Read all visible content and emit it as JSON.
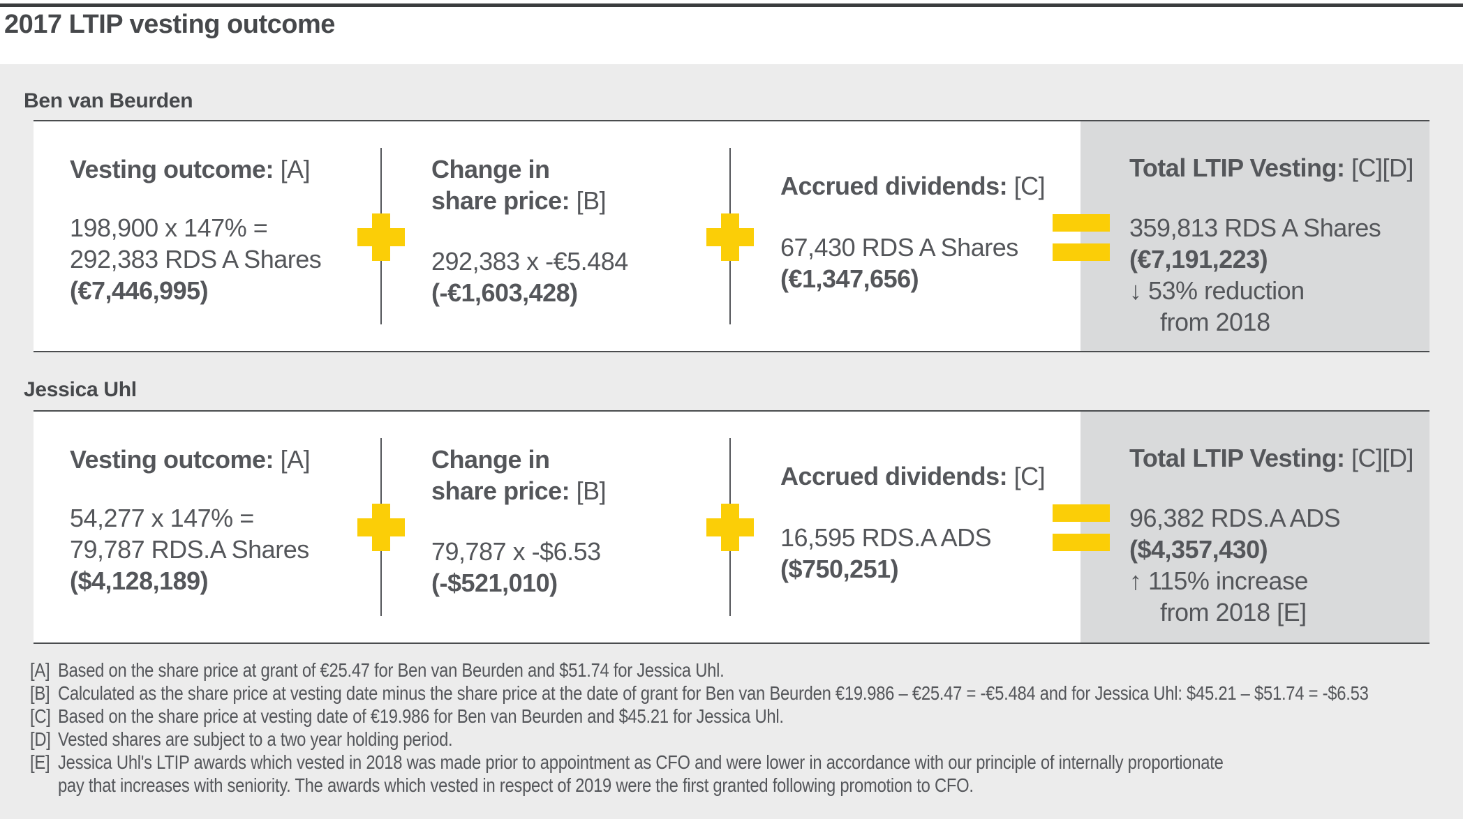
{
  "title": "2017 LTIP vesting outcome",
  "colors": {
    "accent_yellow": "#FBCE07",
    "text_gray": "#54565A",
    "total_panel_gray": "#D9DADB",
    "section_background": "#ECECEC"
  },
  "icons": {
    "plus": "plus-sign",
    "equals": "equals-sign",
    "down_arrow": "↓",
    "up_arrow": "↑"
  },
  "people": [
    {
      "name": "Ben van Beurden",
      "vesting_outcome": {
        "label": "Vesting outcome:",
        "ref": "[A]",
        "calc": "198,900 x 147% =",
        "result": "292,383 RDS A Shares",
        "value": "(€7,446,995)"
      },
      "change_in_share_price": {
        "label_line1": "Change in",
        "label_line2": "share price:",
        "ref": "[B]",
        "calc": "292,383 x -€5.484",
        "value": "(-€1,603,428)"
      },
      "accrued_dividends": {
        "label": "Accrued dividends:",
        "ref": "[C]",
        "result": "67,430 RDS A Shares",
        "value": "(€1,347,656)"
      },
      "total": {
        "label": "Total LTIP Vesting:",
        "ref": "[C][D]",
        "result": "359,813 RDS A Shares",
        "value": "(€7,191,223)",
        "change_line1": "↓ 53% reduction",
        "change_line2": "from 2018"
      }
    },
    {
      "name": "Jessica Uhl",
      "vesting_outcome": {
        "label": "Vesting outcome:",
        "ref": "[A]",
        "calc": "54,277 x 147% =",
        "result": "79,787 RDS.A Shares",
        "value": "($4,128,189)"
      },
      "change_in_share_price": {
        "label_line1": "Change in",
        "label_line2": "share price:",
        "ref": "[B]",
        "calc": "79,787 x -$6.53",
        "value": "(-$521,010)"
      },
      "accrued_dividends": {
        "label": "Accrued dividends:",
        "ref": "[C]",
        "result": "16,595 RDS.A ADS",
        "value": "($750,251)"
      },
      "total": {
        "label": "Total LTIP Vesting:",
        "ref": "[C][D]",
        "result": "96,382 RDS.A ADS",
        "value": "($4,357,430)",
        "change_line1": "↑ 115% increase",
        "change_line2": "from 2018 [E]"
      }
    }
  ],
  "footnotes": [
    {
      "ref": "[A]",
      "text": "Based on the share price at grant of €25.47 for Ben van Beurden and $51.74 for Jessica Uhl."
    },
    {
      "ref": "[B]",
      "text": "Calculated as the share price at vesting date minus the share price at the date of grant for Ben van Beurden €19.986 – €25.47 = -€5.484 and for Jessica Uhl: $45.21 – $51.74 = -$6.53"
    },
    {
      "ref": "[C]",
      "text": "Based on the share price at vesting date of €19.986 for Ben van Beurden and $45.21 for Jessica Uhl."
    },
    {
      "ref": "[D]",
      "text": "Vested shares are subject to a two year holding period."
    },
    {
      "ref": "[E]",
      "text": "Jessica Uhl's LTIP awards which vested in 2018 was made prior to appointment as CFO and were lower in accordance with our principle of internally proportionate\npay that increases with seniority. The awards which vested in respect of 2019 were the first granted following promotion to CFO."
    }
  ]
}
